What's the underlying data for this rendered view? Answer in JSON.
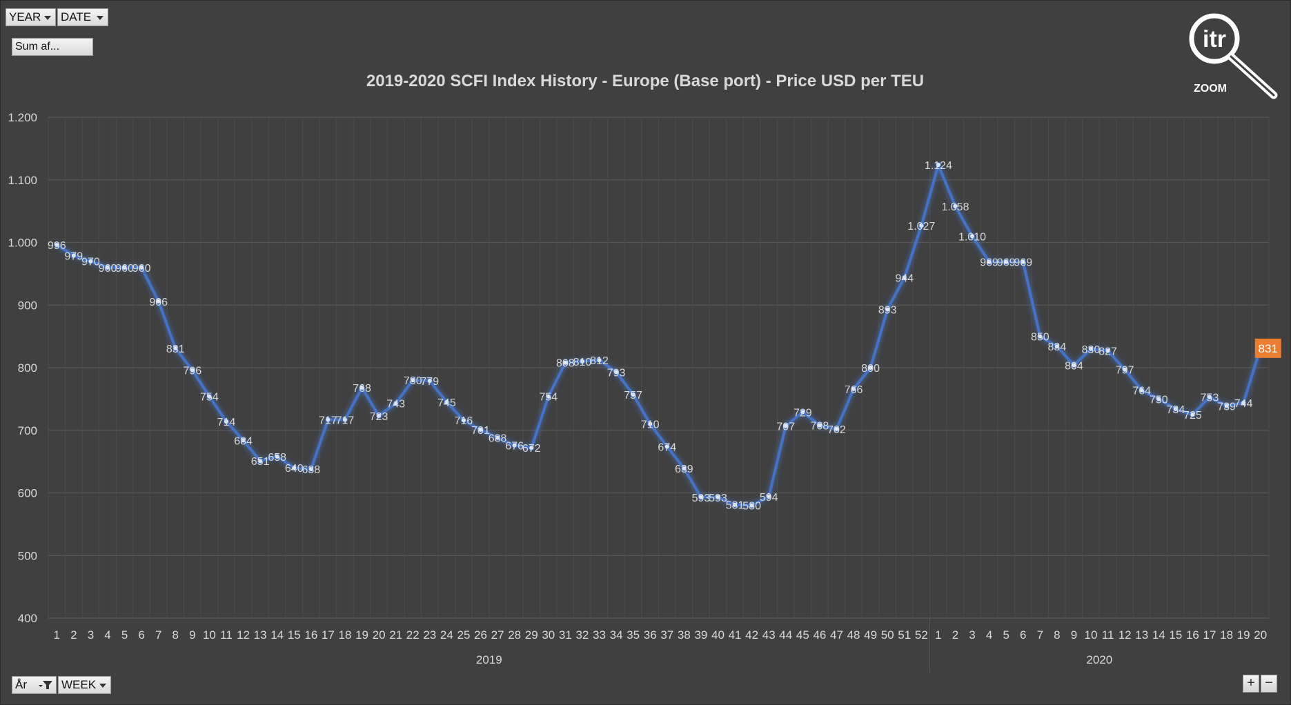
{
  "filters": {
    "year_label": "YEAR",
    "date_label": "DATE",
    "sum_label": "Sum af...",
    "axis_field_label": "År",
    "week_label": "WEEK"
  },
  "logo": {
    "text": "itr",
    "caption": "ZOOM"
  },
  "zoom_controls": {
    "plus": "+",
    "minus": "−"
  },
  "colors": {
    "line": "#4472c4",
    "highlight": "#ed7d31",
    "background": "#404040",
    "grid": "#595959",
    "text": "#d9d9d9"
  },
  "chart_data": {
    "type": "line",
    "title": "2019-2020 SCFI Index History - Europe (Base port) - Price USD per TEU",
    "ylim": [
      400,
      1200
    ],
    "yticks": [
      400,
      500,
      600,
      700,
      800,
      900,
      1000,
      1100,
      1200
    ],
    "ytick_labels": [
      "400",
      "500",
      "600",
      "700",
      "800",
      "900",
      "1.000",
      "1.100",
      "1.200"
    ],
    "grid": true,
    "groups": [
      {
        "label": "2019",
        "weeks": [
          "1",
          "2",
          "3",
          "4",
          "5",
          "6",
          "7",
          "8",
          "9",
          "10",
          "11",
          "12",
          "13",
          "14",
          "15",
          "16",
          "17",
          "18",
          "19",
          "20",
          "21",
          "22",
          "23",
          "24",
          "25",
          "26",
          "27",
          "28",
          "29",
          "30",
          "31",
          "32",
          "33",
          "34",
          "35",
          "36",
          "37",
          "38",
          "39",
          "40",
          "41",
          "42",
          "43",
          "44",
          "45",
          "46",
          "47",
          "48",
          "49",
          "50",
          "51",
          "52"
        ]
      },
      {
        "label": "2020",
        "weeks": [
          "1",
          "2",
          "3",
          "4",
          "5",
          "6",
          "7",
          "8",
          "9",
          "10",
          "11",
          "12",
          "13",
          "14",
          "15",
          "16",
          "17",
          "18",
          "19",
          "20"
        ]
      }
    ],
    "series": [
      {
        "values": [
          996,
          979,
          970,
          960,
          960,
          960,
          906,
          831,
          796,
          754,
          714,
          684,
          651,
          658,
          640,
          638,
          717,
          717,
          768,
          723,
          743,
          780,
          779,
          745,
          716,
          701,
          688,
          676,
          672,
          754,
          808,
          810,
          812,
          793,
          757,
          710,
          674,
          639,
          593,
          593,
          581,
          580,
          594,
          707,
          729,
          708,
          702,
          766,
          800,
          893,
          944,
          1027,
          1124,
          1058,
          1010,
          969,
          969,
          969,
          850,
          834,
          804,
          830,
          827,
          797,
          764,
          750,
          734,
          725,
          753,
          739,
          744,
          831
        ],
        "data_labels": [
          "996",
          "979",
          "970",
          "960",
          "960",
          "960",
          "906",
          "831",
          "796",
          "754",
          "714",
          "684",
          "651",
          "658",
          "640",
          "638",
          "717",
          "717",
          "768",
          "723",
          "743",
          "780",
          "779",
          "745",
          "716",
          "701",
          "688",
          "676",
          "672",
          "754",
          "808",
          "810",
          "812",
          "793",
          "757",
          "710",
          "674",
          "639",
          "593",
          "593",
          "581",
          "580",
          "594",
          "707",
          "729",
          "708",
          "702",
          "766",
          "800",
          "893",
          "944",
          "1.027",
          "1.124",
          "1.058",
          "1.010",
          "969",
          "969",
          "969",
          "850",
          "834",
          "804",
          "830",
          "827",
          "797",
          "764",
          "750",
          "734",
          "725",
          "753",
          "739",
          "744",
          "831"
        ]
      }
    ],
    "highlight_last": "831"
  }
}
